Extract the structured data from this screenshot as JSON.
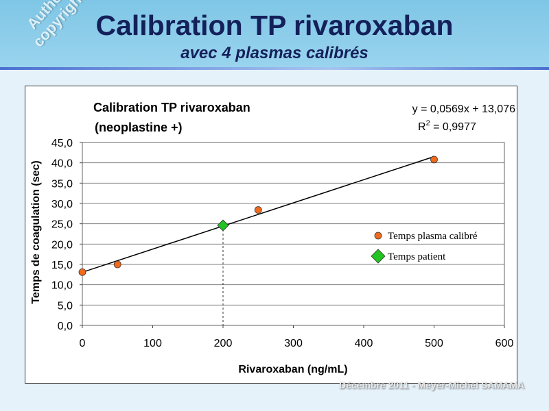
{
  "slide": {
    "title": "Calibration TP rivaroxaban",
    "subtitle": "avec 4 plasmas calibrés",
    "watermark_line1": "Author's",
    "watermark_line2": "copyright©",
    "footer": "Décembre 2011 - Meyer-Michel SAMAMA"
  },
  "chart_data": {
    "type": "scatter",
    "title_line1": "Calibration TP rivaroxaban",
    "title_line2": "(neoplastine +)",
    "xlabel": "Rivaroxaban (ng/mL)",
    "ylabel": "Temps de coagulation (sec)",
    "xlim": [
      0,
      600
    ],
    "ylim": [
      0,
      45
    ],
    "xticks": [
      0,
      100,
      200,
      300,
      400,
      500,
      600
    ],
    "yticks": [
      "0,0",
      "5,0",
      "10,0",
      "15,0",
      "20,0",
      "25,0",
      "30,0",
      "35,0",
      "40,0",
      "45,0"
    ],
    "grid": "horizontal",
    "legend_position": "right",
    "series": [
      {
        "name": "Temps plasma calibré",
        "marker": "circle",
        "color": "#f26a1b",
        "points": [
          [
            0,
            13.1
          ],
          [
            50,
            15.0
          ],
          [
            250,
            28.4
          ],
          [
            500,
            40.8
          ]
        ]
      },
      {
        "name": "Temps patient",
        "marker": "diamond",
        "color": "#22c422",
        "points": [
          [
            200,
            24.6
          ]
        ]
      }
    ],
    "trendline": {
      "slope": 0.0569,
      "intercept": 13.076,
      "x_range": [
        0,
        500
      ],
      "equation": "y = 0,0569x + 13,076",
      "r2_prefix": "R",
      "r2_exp": "2",
      "r2_value": " = 0,9977"
    },
    "dropline_x": 200
  }
}
